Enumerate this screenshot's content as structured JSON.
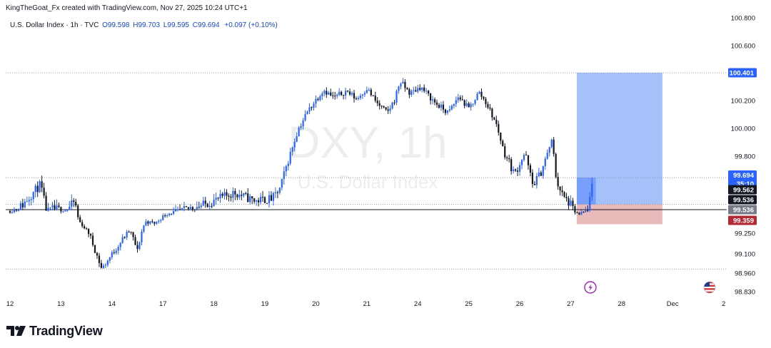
{
  "header": {
    "credit": "KingTheGoat_Fx created with TradingView.com, Nov 27, 2025 10:24 UTC+1"
  },
  "legend": {
    "symbol": "U.S. Dollar Index · 1h · TVC",
    "open": "O99.598",
    "high": "H99.703",
    "low": "L99.595",
    "close": "C99.694",
    "change": "+0.097 (+0.10%)"
  },
  "watermark": {
    "ticker": "DXY, 1h",
    "name": "U.S. Dollar Index"
  },
  "brand": {
    "name": "TradingView"
  },
  "colors": {
    "up": "#2962ff",
    "down": "#131722",
    "target_zone": "#5b8ef5",
    "stop_zone": "#e7b3b3",
    "target_tag": "#2962ff",
    "stop_tag": "#b22833",
    "close_tag": "#2962ff",
    "entry_tag": "#131722",
    "gray_tag": "#787b86"
  },
  "chart_data": {
    "type": "candlestick",
    "title": "",
    "x_categories": [
      "12",
      "13",
      "14",
      "17",
      "18",
      "19",
      "20",
      "21",
      "24",
      "25",
      "26",
      "27",
      "28",
      "Dec",
      "2"
    ],
    "y_ticks": [
      "100.800",
      "100.600",
      "100.200",
      "100.000",
      "99.800",
      "99.250",
      "99.100",
      "98.960",
      "98.830"
    ],
    "ylim": [
      98.8,
      100.85
    ],
    "grid": false,
    "path_points": [
      {
        "x": 0,
        "y": 99.52
      },
      {
        "x": 0.25,
        "y": 99.56
      },
      {
        "x": 0.45,
        "y": 99.62
      },
      {
        "x": 0.6,
        "y": 99.66
      },
      {
        "x": 0.72,
        "y": 99.52
      },
      {
        "x": 0.85,
        "y": 99.54
      },
      {
        "x": 1.1,
        "y": 99.53
      },
      {
        "x": 1.28,
        "y": 99.58
      },
      {
        "x": 1.35,
        "y": 99.4
      },
      {
        "x": 1.55,
        "y": 99.25
      },
      {
        "x": 1.8,
        "y": 98.99
      },
      {
        "x": 2.1,
        "y": 99.15
      },
      {
        "x": 2.35,
        "y": 99.28
      },
      {
        "x": 2.5,
        "y": 99.12
      },
      {
        "x": 2.65,
        "y": 99.39
      },
      {
        "x": 2.85,
        "y": 99.37
      },
      {
        "x": 3.05,
        "y": 99.48
      },
      {
        "x": 3.3,
        "y": 99.52
      },
      {
        "x": 3.6,
        "y": 99.55
      },
      {
        "x": 3.8,
        "y": 99.56
      },
      {
        "x": 4.1,
        "y": 99.59
      },
      {
        "x": 4.4,
        "y": 99.62
      },
      {
        "x": 4.8,
        "y": 99.58
      },
      {
        "x": 5.15,
        "y": 99.59
      },
      {
        "x": 5.3,
        "y": 99.64
      },
      {
        "x": 5.5,
        "y": 99.82
      },
      {
        "x": 5.65,
        "y": 99.99
      },
      {
        "x": 5.85,
        "y": 100.13
      },
      {
        "x": 6.15,
        "y": 100.28
      },
      {
        "x": 6.35,
        "y": 100.22
      },
      {
        "x": 6.6,
        "y": 100.27
      },
      {
        "x": 6.8,
        "y": 100.21
      },
      {
        "x": 7.0,
        "y": 100.29
      },
      {
        "x": 7.2,
        "y": 100.18
      },
      {
        "x": 7.4,
        "y": 100.11
      },
      {
        "x": 7.55,
        "y": 100.21
      },
      {
        "x": 7.65,
        "y": 100.34
      },
      {
        "x": 7.85,
        "y": 100.25
      },
      {
        "x": 8.05,
        "y": 100.3
      },
      {
        "x": 8.35,
        "y": 100.18
      },
      {
        "x": 8.6,
        "y": 100.11
      },
      {
        "x": 8.8,
        "y": 100.23
      },
      {
        "x": 9.0,
        "y": 100.14
      },
      {
        "x": 9.2,
        "y": 100.26
      },
      {
        "x": 9.35,
        "y": 100.18
      },
      {
        "x": 9.55,
        "y": 100.02
      },
      {
        "x": 9.7,
        "y": 99.82
      },
      {
        "x": 9.9,
        "y": 99.71
      },
      {
        "x": 10.1,
        "y": 99.82
      },
      {
        "x": 10.25,
        "y": 99.66
      },
      {
        "x": 10.4,
        "y": 99.71
      },
      {
        "x": 10.55,
        "y": 99.82
      },
      {
        "x": 10.62,
        "y": 99.92
      },
      {
        "x": 10.72,
        "y": 99.68
      },
      {
        "x": 10.85,
        "y": 99.6
      },
      {
        "x": 11.0,
        "y": 99.56
      },
      {
        "x": 11.15,
        "y": 99.47
      },
      {
        "x": 11.25,
        "y": 99.5
      },
      {
        "x": 11.35,
        "y": 99.55
      },
      {
        "x": 11.45,
        "y": 99.69
      }
    ],
    "position_tool": {
      "entry": 99.562,
      "target": 100.401,
      "stop": 99.359,
      "x_start": 11.12,
      "x_end": 12.8
    },
    "price_tags": [
      {
        "label": "100.401",
        "value": 100.401,
        "role": "target"
      },
      {
        "label": "99.694",
        "sub": "35:10",
        "value": 99.694,
        "role": "close"
      },
      {
        "label": "99.562",
        "value": 99.562,
        "role": "entry"
      },
      {
        "label": "99.536",
        "value": 99.536,
        "role": "entry2"
      },
      {
        "label": "99.536",
        "value": 99.536,
        "role": "gray"
      },
      {
        "label": "99.359",
        "value": 99.359,
        "role": "stop"
      }
    ],
    "reference_lines": [
      100.401,
      99.694,
      99.562,
      99.536,
      98.99
    ]
  }
}
